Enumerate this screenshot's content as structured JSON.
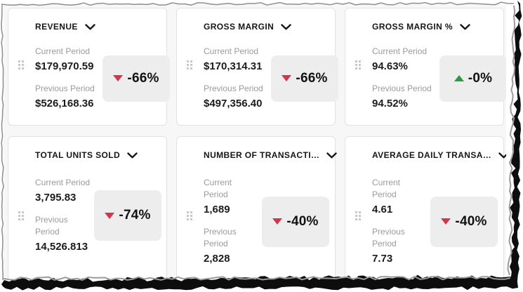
{
  "dashboard": {
    "background": "#f7f7f7",
    "card_background": "#ffffff",
    "card_border": "#e2e2e2"
  },
  "colors": {
    "trend_up": "#2b9c3e",
    "trend_down": "#d1364a",
    "delta_box_bg": "#ededed",
    "text_primary": "#1c1c1c",
    "text_muted": "#9b9b9b"
  },
  "labels": {
    "current": "Current Period",
    "previous": "Previous Period"
  },
  "cards": [
    {
      "title": "REVENUE",
      "current_value": "$179,970.59",
      "previous_value": "$526,168.36",
      "trend": {
        "direction": "down",
        "value": "-66%"
      }
    },
    {
      "title": "GROSS MARGIN",
      "current_value": "$170,314.31",
      "previous_value": "$497,356.40",
      "trend": {
        "direction": "down",
        "value": "-66%"
      }
    },
    {
      "title": "GROSS MARGIN %",
      "current_value": "94.63%",
      "previous_value": "94.52%",
      "trend": {
        "direction": "up",
        "value": "-0%"
      }
    },
    {
      "title": "TOTAL UNITS SOLD",
      "current_value": "3,795.83",
      "previous_value": "14,526.813",
      "trend": {
        "direction": "down",
        "value": "-74%"
      }
    },
    {
      "title": "NUMBER OF TRANSACTI…",
      "current_value": "1,689",
      "previous_value": "2,828",
      "trend": {
        "direction": "down",
        "value": "-40%"
      }
    },
    {
      "title": "AVERAGE DAILY TRANSA…",
      "current_value": "4.61",
      "previous_value": "7.73",
      "trend": {
        "direction": "down",
        "value": "-40%"
      }
    }
  ]
}
